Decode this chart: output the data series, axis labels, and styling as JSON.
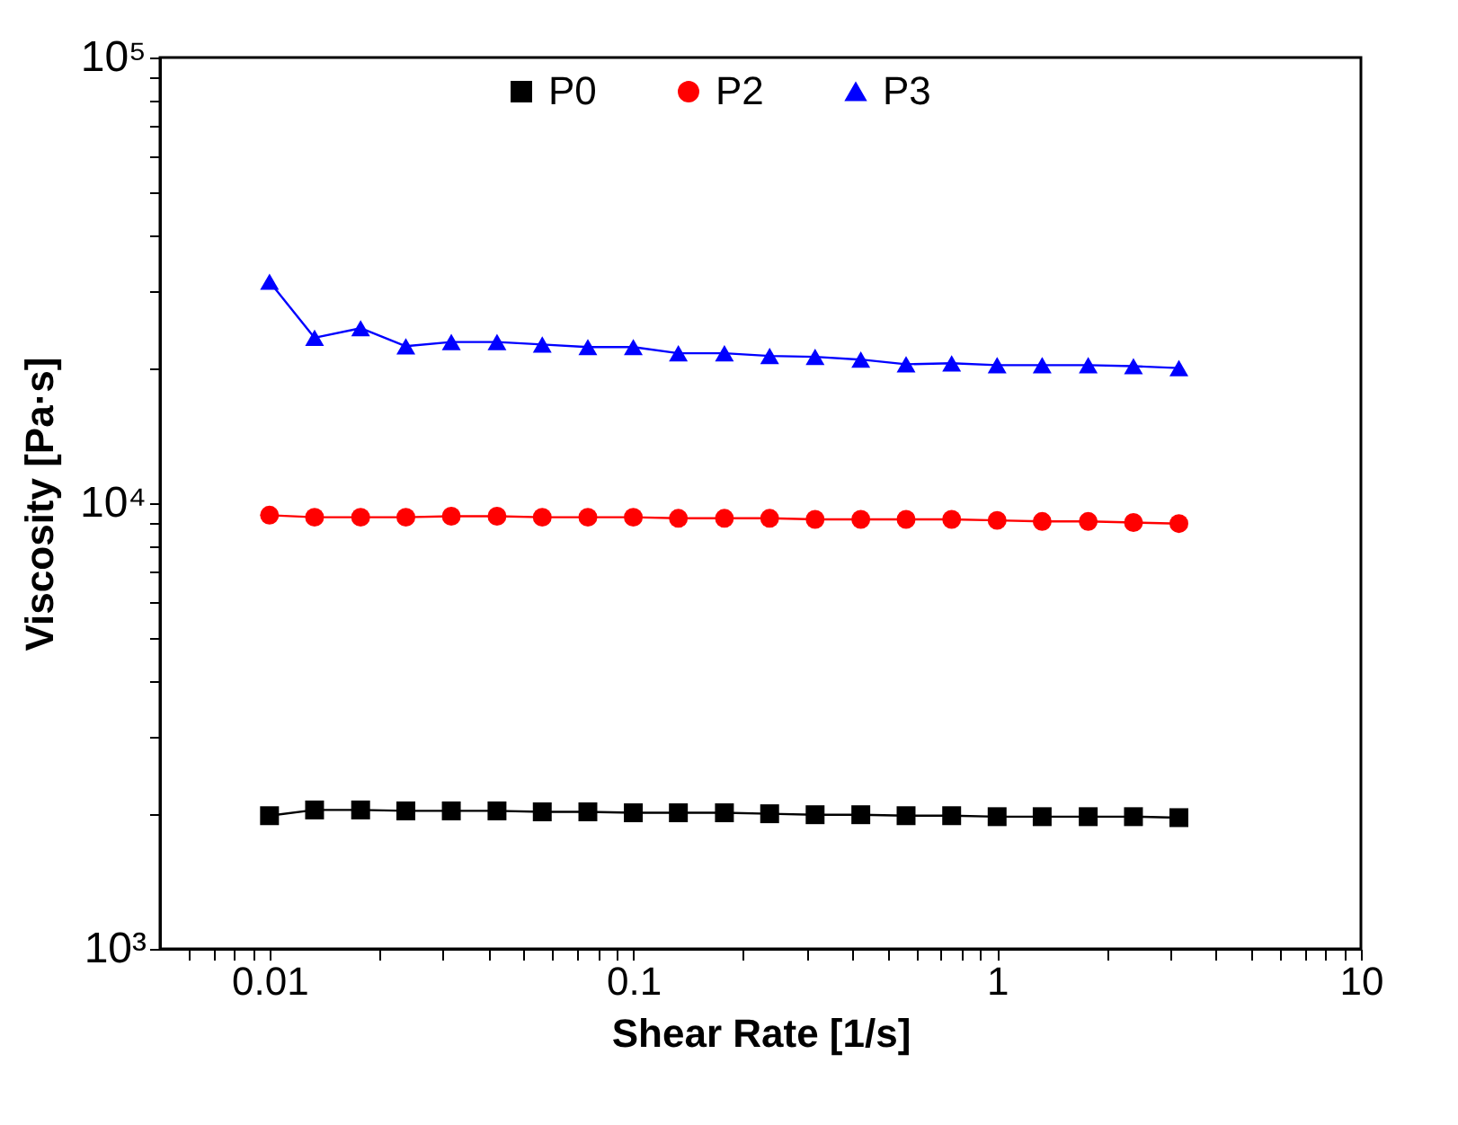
{
  "chart_data": {
    "type": "line",
    "xlabel": "Shear Rate [1/s]",
    "ylabel": "Viscosity [Pa·s]",
    "log": "xy",
    "grid": false,
    "legend": "top",
    "line_style": "solid",
    "xlim": [
      0.005,
      10
    ],
    "ylim": [
      1000,
      100000
    ],
    "xticks": [
      {
        "value": 0.006,
        "label": null
      },
      {
        "value": 0.007,
        "label": null
      },
      {
        "value": 0.008,
        "label": null
      },
      {
        "value": 0.009,
        "label": null
      },
      0.01,
      {
        "value": 0.02,
        "label": null
      },
      {
        "value": 0.03,
        "label": null
      },
      {
        "value": 0.04,
        "label": null
      },
      {
        "value": 0.05,
        "label": null
      },
      {
        "value": 0.06,
        "label": null
      },
      {
        "value": 0.07,
        "label": null
      },
      {
        "value": 0.08,
        "label": null
      },
      {
        "value": 0.09,
        "label": null
      },
      0.1,
      {
        "value": 0.2,
        "label": null
      },
      {
        "value": 0.3,
        "label": null
      },
      {
        "value": 0.4,
        "label": null
      },
      {
        "value": 0.5,
        "label": null
      },
      {
        "value": 0.6,
        "label": null
      },
      {
        "value": 0.7,
        "label": null
      },
      {
        "value": 0.8,
        "label": null
      },
      {
        "value": 0.9,
        "label": null
      },
      1,
      {
        "value": 2,
        "label": null
      },
      {
        "value": 3,
        "label": null
      },
      {
        "value": 4,
        "label": null
      },
      {
        "value": 5,
        "label": null
      },
      {
        "value": 6,
        "label": null
      },
      {
        "value": 7,
        "label": null
      },
      {
        "value": 8,
        "label": null
      },
      {
        "value": 9,
        "label": null
      },
      10
    ],
    "yticks": [
      {
        "value": 1000,
        "label": "10³"
      },
      {
        "value": 2000,
        "label": null
      },
      {
        "value": 3000,
        "label": null
      },
      {
        "value": 4000,
        "label": null
      },
      {
        "value": 5000,
        "label": null
      },
      {
        "value": 6000,
        "label": null
      },
      {
        "value": 7000,
        "label": null
      },
      {
        "value": 8000,
        "label": null
      },
      {
        "value": 9000,
        "label": null
      },
      {
        "value": 10000,
        "label": "10⁴"
      },
      {
        "value": 20000,
        "label": null
      },
      {
        "value": 30000,
        "label": null
      },
      {
        "value": 40000,
        "label": null
      },
      {
        "value": 50000,
        "label": null
      },
      {
        "value": 60000,
        "label": null
      },
      {
        "value": 70000,
        "label": null
      },
      {
        "value": 80000,
        "label": null
      },
      {
        "value": 90000,
        "label": null
      },
      {
        "value": 100000,
        "label": "10⁵"
      }
    ],
    "x": [
      0.01,
      0.0133,
      0.0178,
      0.0237,
      0.0316,
      0.0422,
      0.0562,
      0.075,
      0.1,
      0.133,
      0.178,
      0.237,
      0.316,
      0.422,
      0.562,
      0.75,
      1,
      1.33,
      1.78,
      2.37,
      3.16
    ],
    "series": [
      {
        "name": "P0",
        "color": "#000000",
        "marker": "square",
        "values": [
          1990,
          2050,
          2050,
          2040,
          2040,
          2040,
          2030,
          2030,
          2020,
          2020,
          2020,
          2010,
          2000,
          2000,
          1990,
          1990,
          1980,
          1980,
          1980,
          1980,
          1970
        ]
      },
      {
        "name": "P2",
        "color": "#ff0000",
        "marker": "circle",
        "values": [
          9400,
          9300,
          9300,
          9300,
          9350,
          9350,
          9300,
          9300,
          9300,
          9250,
          9250,
          9250,
          9200,
          9200,
          9200,
          9200,
          9150,
          9100,
          9100,
          9050,
          9000
        ]
      },
      {
        "name": "P3",
        "color": "#0000ff",
        "marker": "triangle",
        "values": [
          31400,
          23500,
          24700,
          22500,
          23000,
          23000,
          22700,
          22400,
          22400,
          21700,
          21700,
          21400,
          21300,
          21000,
          20500,
          20600,
          20400,
          20400,
          20400,
          20300,
          20100
        ]
      }
    ]
  }
}
